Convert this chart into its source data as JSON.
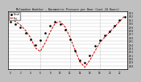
{
  "title": "Milwaukee Weather - Barometric Pressure per Hour (Last 24 Hours)",
  "hours": [
    0,
    1,
    2,
    3,
    4,
    5,
    6,
    7,
    8,
    9,
    10,
    11,
    12,
    13,
    14,
    15,
    16,
    17,
    18,
    19,
    20,
    21,
    22,
    23
  ],
  "pressure_black": [
    30.05,
    29.97,
    29.88,
    29.72,
    29.55,
    29.38,
    29.52,
    29.72,
    29.92,
    30.05,
    29.98,
    29.82,
    29.55,
    29.22,
    28.95,
    28.88,
    29.08,
    29.35,
    29.52,
    29.65,
    29.78,
    29.92,
    30.08,
    30.18
  ],
  "pressure_red": [
    30.1,
    30.05,
    29.95,
    29.8,
    29.6,
    29.3,
    29.2,
    29.45,
    29.75,
    30.0,
    30.05,
    29.9,
    29.6,
    29.25,
    28.9,
    28.75,
    28.95,
    29.2,
    29.45,
    29.6,
    29.75,
    29.9,
    30.05,
    30.2
  ],
  "color_black": "#000000",
  "color_red": "#cc0000",
  "ylim_min": 28.7,
  "ylim_max": 30.35,
  "ytick_values": [
    28.8,
    28.9,
    29.0,
    29.1,
    29.2,
    29.3,
    29.4,
    29.5,
    29.6,
    29.7,
    29.8,
    29.9,
    30.0,
    30.1,
    30.2,
    30.3
  ],
  "bg_color": "#c0c0c0",
  "plot_bg_color": "#ffffff",
  "grid_color": "#808080",
  "border_color": "#000000",
  "vline_positions": [
    6,
    12,
    18
  ],
  "xtick_step": 2
}
